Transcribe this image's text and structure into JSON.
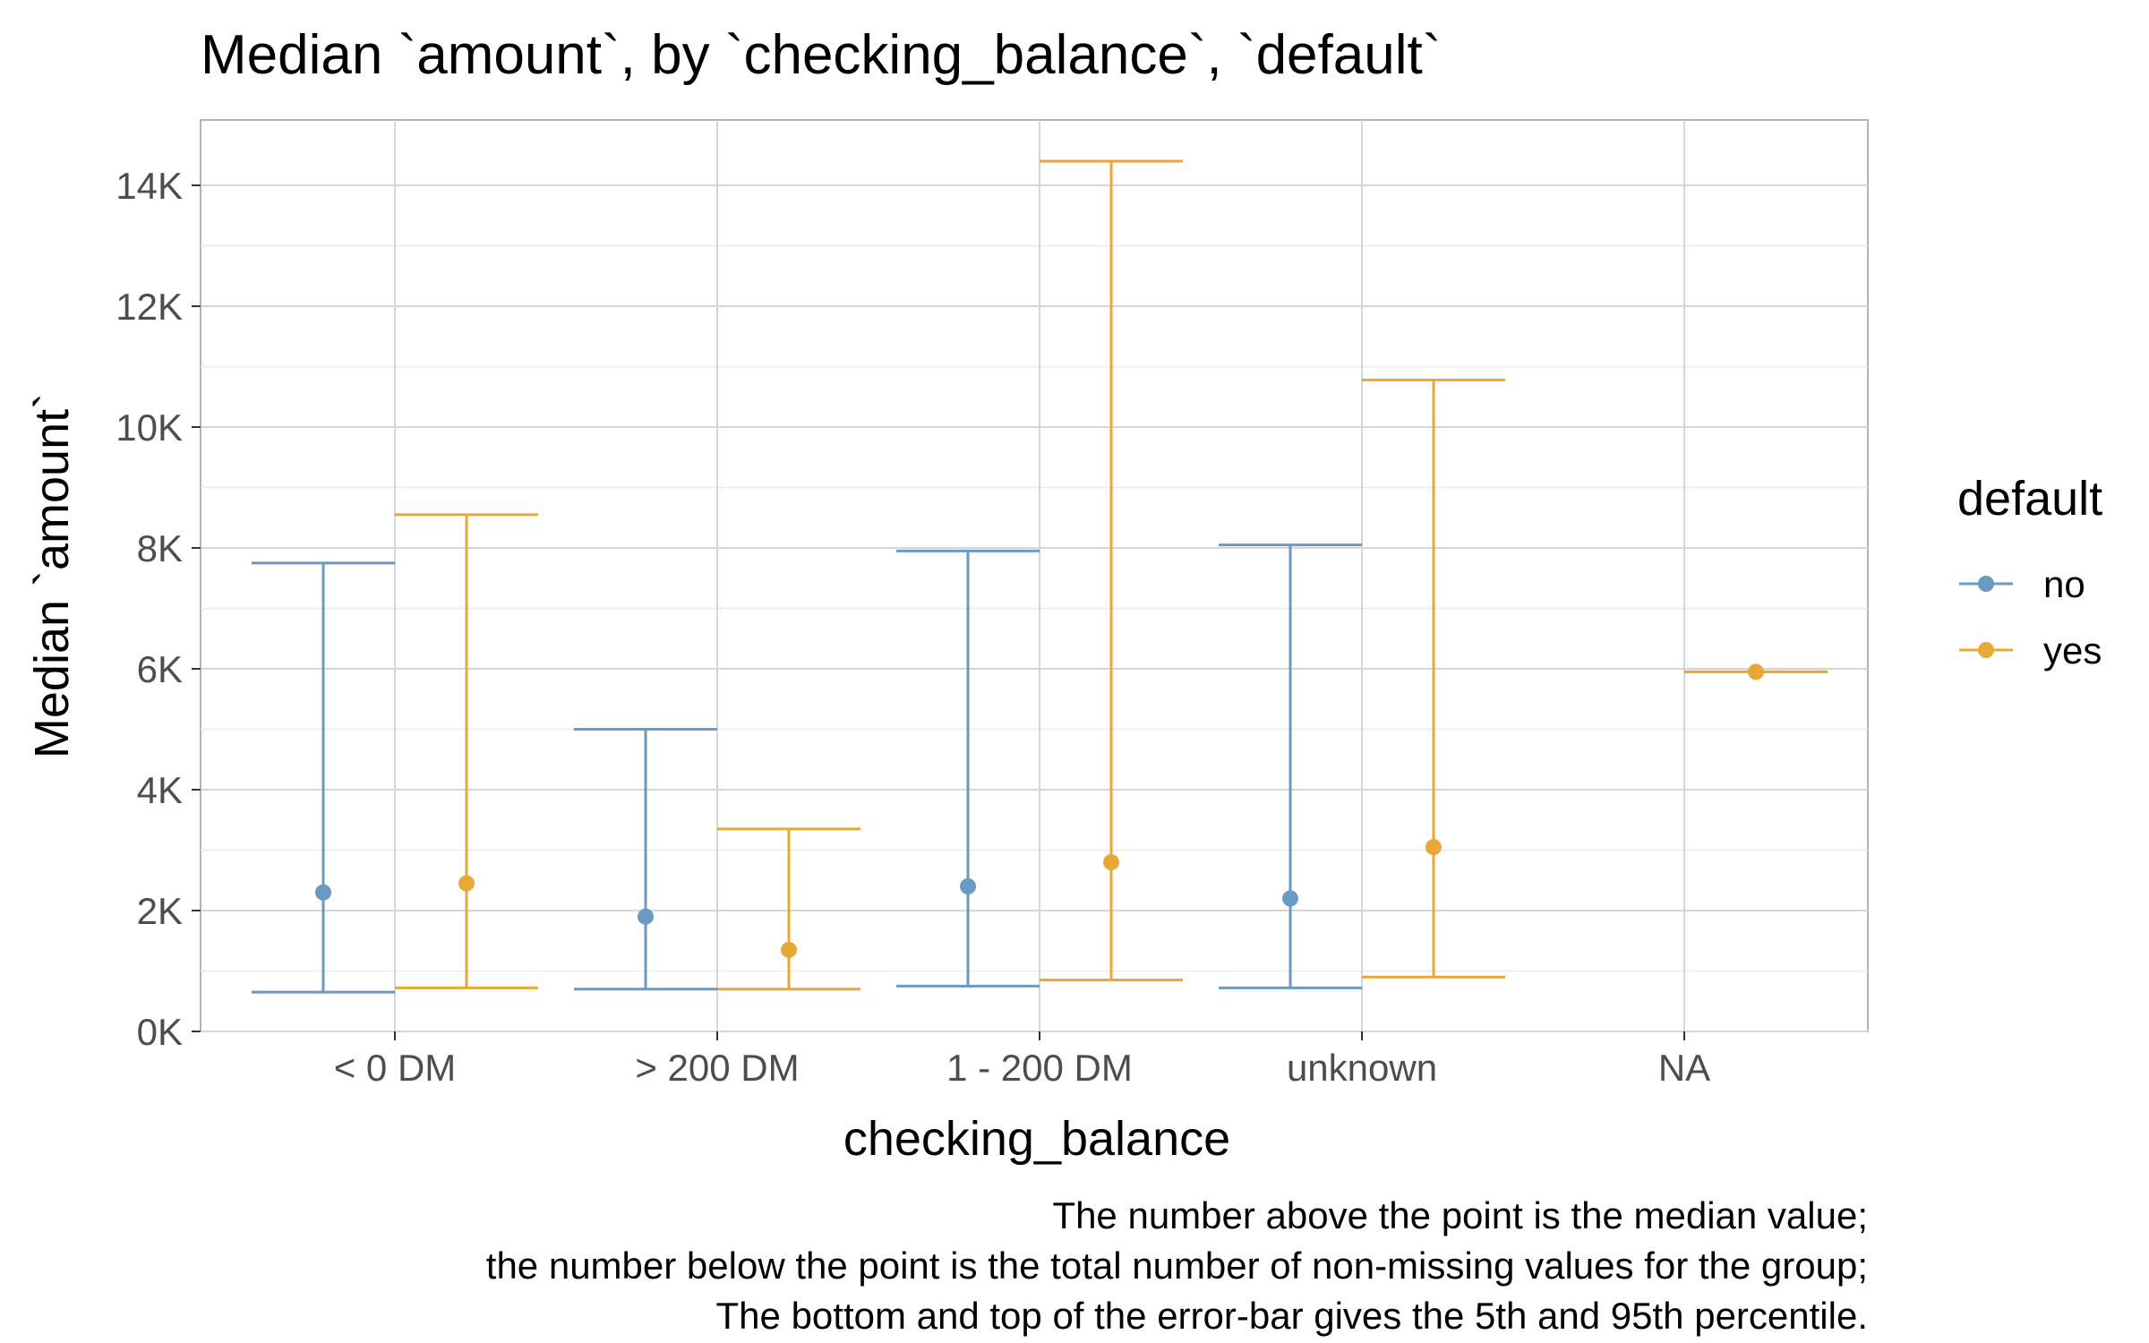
{
  "chart_data": {
    "type": "errorbar",
    "title": "Median `amount`, by `checking_balance`, `default`",
    "xlabel": "checking_balance",
    "ylabel": "Median `amount`",
    "categories": [
      "< 0 DM",
      "> 200 DM",
      "1 - 200 DM",
      "unknown",
      "NA"
    ],
    "ylim": [
      0,
      15000
    ],
    "y_ticks": [
      0,
      2000,
      4000,
      6000,
      8000,
      10000,
      12000,
      14000
    ],
    "y_tick_labels": [
      "0K",
      "2K",
      "4K",
      "6K",
      "8K",
      "10K",
      "12K",
      "14K"
    ],
    "grid": true,
    "legend": {
      "title": "default",
      "position": "right",
      "entries": [
        "no",
        "yes"
      ]
    },
    "series": [
      {
        "name": "no",
        "color": "#6a9ac4",
        "median": [
          2300,
          1900,
          2400,
          2200,
          null
        ],
        "p5": [
          650,
          700,
          750,
          720,
          null
        ],
        "p95": [
          7750,
          5000,
          7950,
          8050,
          null
        ]
      },
      {
        "name": "yes",
        "color": "#e8a838",
        "median": [
          2450,
          1350,
          2800,
          3050,
          5950
        ],
        "p5": [
          720,
          700,
          850,
          900,
          5950
        ],
        "p95": [
          8550,
          3350,
          14400,
          10780,
          5950
        ]
      }
    ],
    "caption": [
      "The number above the point is the median value;",
      "the number below the point is the total number of non-missing values for the group;",
      "The bottom and top of the error-bar gives the 5th and 95th percentile."
    ]
  }
}
